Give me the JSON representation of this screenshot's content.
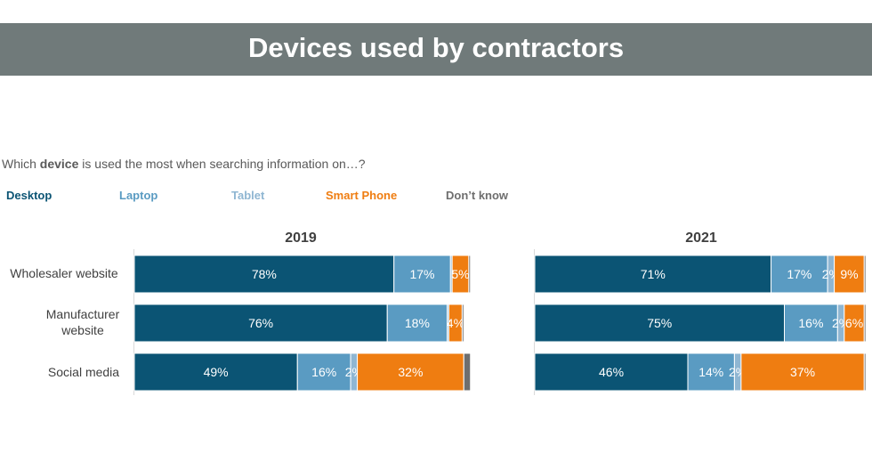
{
  "title": "Devices used by contractors",
  "question": {
    "before": "Which ",
    "bold": "device",
    "after": " is used the most when searching information on…?"
  },
  "legend": [
    {
      "label": "Desktop",
      "color": "#0b5474"
    },
    {
      "label": "Laptop",
      "color": "#5a9bc2"
    },
    {
      "label": "Tablet",
      "color": "#8fb6d2"
    },
    {
      "label": "Smart Phone",
      "color": "#ef7d11"
    },
    {
      "label": "Don’t know",
      "color": "#6e6e6e"
    }
  ],
  "chart_data": [
    {
      "type": "bar",
      "orientation": "horizontal",
      "stacked": true,
      "title": "2019",
      "categories": [
        "Wholesaler website",
        "Manufacturer website",
        "Social media"
      ],
      "series": [
        {
          "name": "Desktop",
          "values": [
            78,
            76,
            49
          ],
          "labels": [
            "78%",
            "76%",
            "49%"
          ]
        },
        {
          "name": "Laptop",
          "values": [
            17,
            18,
            16
          ],
          "labels": [
            "17%",
            "18%",
            "16%"
          ]
        },
        {
          "name": "Tablet",
          "values": [
            0.5,
            0.5,
            2
          ],
          "labels": [
            "",
            "",
            "2%"
          ]
        },
        {
          "name": "Smart Phone",
          "values": [
            5,
            4,
            32
          ],
          "labels": [
            "5%",
            "4%",
            "32%"
          ]
        },
        {
          "name": "Don’t know",
          "values": [
            0.5,
            0.5,
            2
          ],
          "labels": [
            "",
            "",
            ""
          ]
        }
      ],
      "xlim": [
        0,
        100
      ]
    },
    {
      "type": "bar",
      "orientation": "horizontal",
      "stacked": true,
      "title": "2021",
      "categories": [
        "Wholesaler website",
        "Manufacturer website",
        "Social media"
      ],
      "series": [
        {
          "name": "Desktop",
          "values": [
            71,
            75,
            46
          ],
          "labels": [
            "71%",
            "75%",
            "46%"
          ]
        },
        {
          "name": "Laptop",
          "values": [
            17,
            16,
            14
          ],
          "labels": [
            "17%",
            "16%",
            "14%"
          ]
        },
        {
          "name": "Tablet",
          "values": [
            2,
            2,
            2
          ],
          "labels": [
            "2%",
            "2%",
            "2%"
          ]
        },
        {
          "name": "Smart Phone",
          "values": [
            9,
            6,
            37
          ],
          "labels": [
            "9%",
            "6%",
            "37%"
          ]
        },
        {
          "name": "Don’t know",
          "values": [
            0.5,
            0.5,
            0.5
          ],
          "labels": [
            "",
            "",
            ""
          ]
        }
      ],
      "xlim": [
        0,
        100
      ]
    }
  ]
}
